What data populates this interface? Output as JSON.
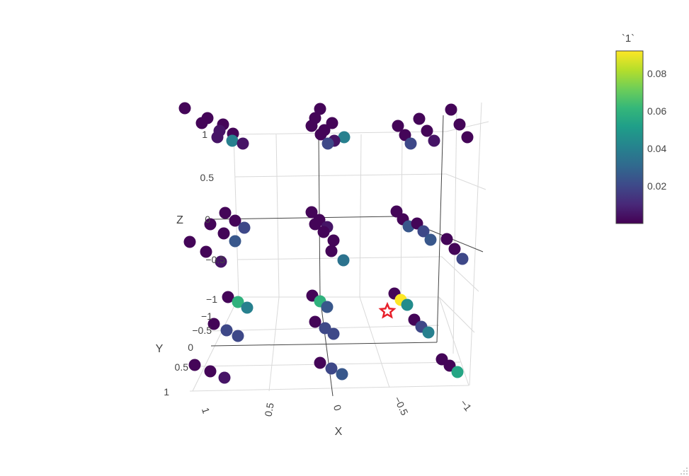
{
  "chart_data": {
    "type": "scatter",
    "dimensions": 3,
    "axes": {
      "x": {
        "title": "X",
        "ticks": [
          "1",
          "0.5",
          "0",
          "−0.5",
          "−1"
        ]
      },
      "y": {
        "title": "Y",
        "ticks": [
          "−1",
          "−0.5",
          "0",
          "0.5",
          "1"
        ]
      },
      "z": {
        "title": "Z",
        "ticks": [
          "−1",
          "−0.5",
          "0",
          "0.5",
          "1"
        ]
      }
    },
    "colorbar": {
      "title": "`1`",
      "ticks": [
        "0.08",
        "0.06",
        "0.04",
        "0.02"
      ],
      "range": [
        0.0,
        0.093
      ],
      "colorscale": "viridis"
    },
    "marker_star": {
      "symbol": "star",
      "color": "#e8202a"
    },
    "points": [
      {
        "g": "z1-x1",
        "c": 0.001
      },
      {
        "g": "z1-x1",
        "c": 0.001
      },
      {
        "g": "z1-x1",
        "c": 0.001
      },
      {
        "g": "z1-x1",
        "c": 0.001
      },
      {
        "g": "z1-x1",
        "c": 0.005
      },
      {
        "g": "z1-x1",
        "c": 0.001
      },
      {
        "g": "z1-x1",
        "c": 0.005
      },
      {
        "g": "z1-x1",
        "c": 0.04
      },
      {
        "g": "z1-x1",
        "c": 0.005
      },
      {
        "g": "z1-x0",
        "c": 0.001
      },
      {
        "g": "z1-x0",
        "c": 0.001
      },
      {
        "g": "z1-x0",
        "c": 0.001
      },
      {
        "g": "z1-x0",
        "c": 0.001
      },
      {
        "g": "z1-x0",
        "c": 0.001
      },
      {
        "g": "z1-x0",
        "c": 0.001
      },
      {
        "g": "z1-x0",
        "c": 0.04
      },
      {
        "g": "z1-x0",
        "c": 0.005
      },
      {
        "g": "z1-x0",
        "c": 0.02
      },
      {
        "g": "z1-xn",
        "c": 0.001
      },
      {
        "g": "z1-xn",
        "c": 0.001
      },
      {
        "g": "z1-xn",
        "c": 0.001
      },
      {
        "g": "z1-xn",
        "c": 0.001
      },
      {
        "g": "z1-xn",
        "c": 0.001
      },
      {
        "g": "z1-xn",
        "c": 0.001
      },
      {
        "g": "z1-xn",
        "c": 0.001
      },
      {
        "g": "z1-xn",
        "c": 0.02
      },
      {
        "g": "z1-xn",
        "c": 0.005
      },
      {
        "g": "z0-x1",
        "c": 0.001
      },
      {
        "g": "z0-x1",
        "c": 0.001
      },
      {
        "g": "z0-x1",
        "c": 0.001
      },
      {
        "g": "z0-x1",
        "c": 0.02
      },
      {
        "g": "z0-x1",
        "c": 0.001
      },
      {
        "g": "z0-x1",
        "c": 0.025
      },
      {
        "g": "z0-x1",
        "c": 0.001
      },
      {
        "g": "z0-x1",
        "c": 0.001
      },
      {
        "g": "z0-x1",
        "c": 0.005
      },
      {
        "g": "z0-x0",
        "c": 0.001
      },
      {
        "g": "z0-x0",
        "c": 0.001
      },
      {
        "g": "z0-x0",
        "c": 0.001
      },
      {
        "g": "z0-x0",
        "c": 0.005
      },
      {
        "g": "z0-x0",
        "c": 0.001
      },
      {
        "g": "z0-x0",
        "c": 0.001
      },
      {
        "g": "z0-x0",
        "c": 0.001
      },
      {
        "g": "z0-x0",
        "c": 0.035
      },
      {
        "g": "z0-xn",
        "c": 0.001
      },
      {
        "g": "z0-xn",
        "c": 0.001
      },
      {
        "g": "z0-xn",
        "c": 0.025
      },
      {
        "g": "z0-xn",
        "c": 0.001
      },
      {
        "g": "z0-xn",
        "c": 0.02
      },
      {
        "g": "z0-xn",
        "c": 0.025
      },
      {
        "g": "z0-xn",
        "c": 0.001
      },
      {
        "g": "z0-xn",
        "c": 0.001
      },
      {
        "g": "z0-xn",
        "c": 0.02
      },
      {
        "g": "zm-x1",
        "c": 0.001
      },
      {
        "g": "zm-x1",
        "c": 0.06
      },
      {
        "g": "zm-x1",
        "c": 0.04
      },
      {
        "g": "zm-x1",
        "c": 0.001
      },
      {
        "g": "zm-x1",
        "c": 0.02
      },
      {
        "g": "zm-x1",
        "c": 0.02
      },
      {
        "g": "zm-x1",
        "c": 0.001
      },
      {
        "g": "zm-x1",
        "c": 0.001
      },
      {
        "g": "zm-x1",
        "c": 0.005
      },
      {
        "g": "zm-x0",
        "c": 0.001
      },
      {
        "g": "zm-x0",
        "c": 0.06
      },
      {
        "g": "zm-x0",
        "c": 0.025
      },
      {
        "g": "zm-x0",
        "c": 0.001
      },
      {
        "g": "zm-x0",
        "c": 0.02
      },
      {
        "g": "zm-x0",
        "c": 0.02
      },
      {
        "g": "zm-x0",
        "c": 0.001
      },
      {
        "g": "zm-x0",
        "c": 0.02
      },
      {
        "g": "zm-x0",
        "c": 0.025
      },
      {
        "g": "zm-xn",
        "c": 0.001
      },
      {
        "g": "zm-xn",
        "c": 0.093
      },
      {
        "g": "zm-xn",
        "c": 0.045
      },
      {
        "g": "zm-xn",
        "c": 0.001
      },
      {
        "g": "zm-xn",
        "c": 0.02
      },
      {
        "g": "zm-xn",
        "c": 0.04
      },
      {
        "g": "zm-xn",
        "c": 0.001
      },
      {
        "g": "zm-xn",
        "c": 0.001
      },
      {
        "g": "zm-xn",
        "c": 0.055
      }
    ]
  }
}
